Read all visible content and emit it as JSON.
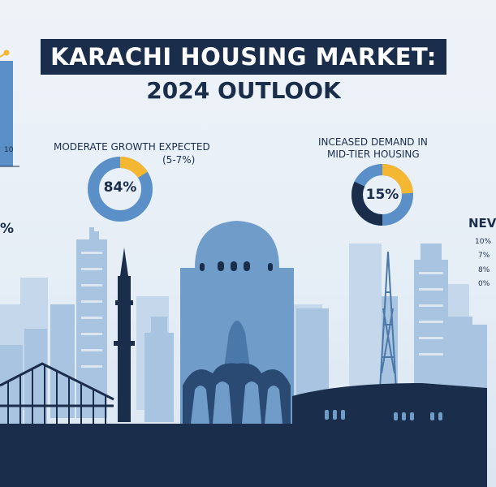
{
  "title": {
    "line1": "KARACHI HOUSING MARKET:",
    "line2": "2024 OUTLOOK"
  },
  "left_panel": {
    "axis_tick": "10",
    "partial_text": "%"
  },
  "stat_left": {
    "label_line1": "MODERATE GROWTH EXPECTED",
    "label_line2": "(5-7%)",
    "percent_text": "84%",
    "percent_value": 84,
    "accent_fraction": 0.16
  },
  "stat_right": {
    "label_line1": "INCEASED DEMAND IN",
    "label_line2": "MID-TIER HOUSING",
    "percent_text": "15%",
    "percent_value": 15,
    "dark_fraction": 0.32,
    "accent_fraction": 0.24
  },
  "right_panel": {
    "heading_partial": "NEV",
    "values": [
      "10%",
      "7%",
      "8%",
      "0%"
    ]
  },
  "colors": {
    "navy": "#1a2d4a",
    "blue": "#5b8fc7",
    "light_blue": "#a9c4e0",
    "yellow": "#f4b731",
    "pale": "#c5d7ea"
  }
}
